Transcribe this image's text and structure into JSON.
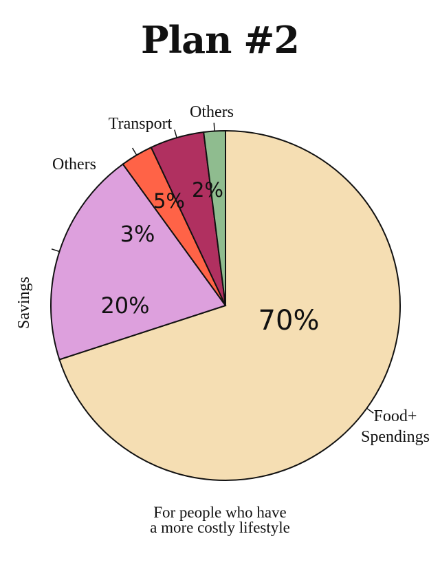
{
  "title": "Plan #2",
  "caption": [
    "For people who have",
    "a more costly lifestyle"
  ],
  "chart_data": {
    "type": "pie",
    "start_angle_deg": 0,
    "direction": "clockwise",
    "slices": [
      {
        "label": [
          "Food+",
          "Spendings"
        ],
        "value": 70,
        "value_label": "70%",
        "color": "#F5DEB3"
      },
      {
        "label": [
          "Savings"
        ],
        "value": 20,
        "value_label": "20%",
        "color": "#DDA0DD"
      },
      {
        "label": [
          "Others"
        ],
        "value": 3,
        "value_label": "3%",
        "color": "#FF6347"
      },
      {
        "label": [
          "Transport"
        ],
        "value": 5,
        "value_label": "5%",
        "color": "#B03060"
      },
      {
        "label": [
          "Others"
        ],
        "value": 2,
        "value_label": "2%",
        "color": "#8FBC8F"
      }
    ]
  }
}
